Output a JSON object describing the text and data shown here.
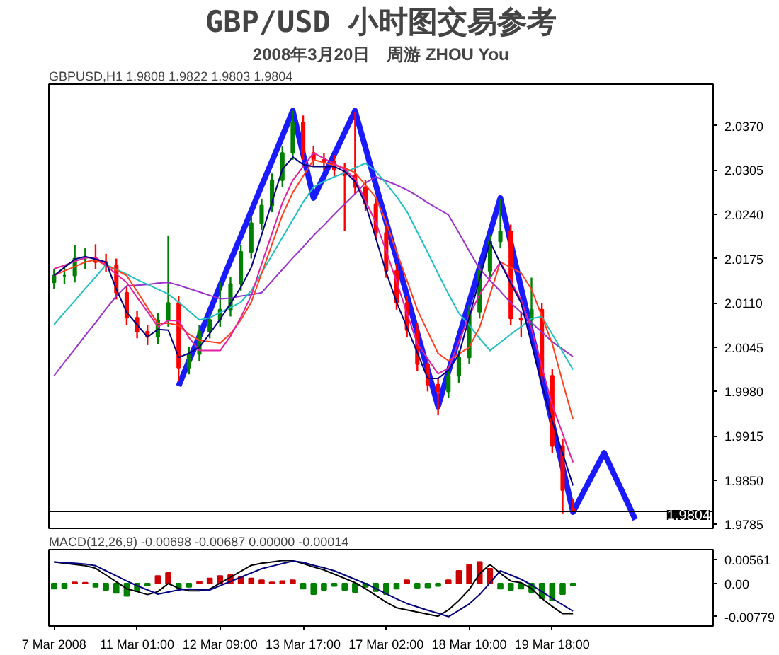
{
  "chart_data": [
    {
      "type": "candlestick",
      "title": "GBP/USD 小时图交易参考",
      "subtitle": "2008年3月20日　周游 ZHOU You",
      "annotations": [
        "GBPUSD,H1  1.9808 1.9822 1.9803 1.9804"
      ],
      "categories": [
        null,
        null,
        null,
        null,
        null,
        null,
        null,
        null,
        null,
        null,
        null,
        null,
        null,
        null,
        null,
        null,
        null,
        null,
        null,
        null,
        null,
        null,
        null,
        null,
        null,
        null,
        null,
        null,
        null,
        null,
        null,
        null,
        null,
        null,
        null,
        null,
        null,
        null,
        null,
        null,
        null,
        null,
        null,
        null,
        null,
        null,
        null,
        null,
        null,
        null,
        null,
        null,
        null,
        null,
        null,
        null,
        null,
        null,
        null,
        null,
        null,
        null,
        null,
        null
      ],
      "ohlc": [
        [
          2.014,
          2.016,
          2.013,
          2.015
        ],
        [
          2.015,
          2.0165,
          2.0138,
          2.015
        ],
        [
          2.015,
          2.0195,
          2.014,
          2.0175
        ],
        [
          2.0175,
          2.019,
          2.016,
          2.0175
        ],
        [
          2.0175,
          2.0196,
          2.016,
          2.017
        ],
        [
          2.017,
          2.0182,
          2.0155,
          2.0165
        ],
        [
          2.0165,
          2.0175,
          2.0115,
          2.0125
        ],
        [
          2.0125,
          2.0135,
          2.0078,
          2.0088
        ],
        [
          2.0088,
          2.0098,
          2.0058,
          2.0068
        ],
        [
          2.0068,
          2.0078,
          2.0048,
          2.006
        ],
        [
          2.006,
          2.0095,
          2.005,
          2.0085
        ],
        [
          2.0085,
          2.0209,
          2.0075,
          2.011
        ],
        [
          2.011,
          2.012,
          1.9995,
          2.0015
        ],
        [
          2.0015,
          2.0045,
          2.0005,
          2.0035
        ],
        [
          2.0035,
          2.0078,
          2.0025,
          2.0068
        ],
        [
          2.0068,
          2.0095,
          2.0058,
          2.0085
        ],
        [
          2.0085,
          2.014,
          2.0075,
          2.01
        ],
        [
          2.01,
          2.0148,
          2.009,
          2.0138
        ],
        [
          2.0138,
          2.0195,
          2.0128,
          2.0185
        ],
        [
          2.0185,
          2.0237,
          2.0175,
          2.0227
        ],
        [
          2.0227,
          2.0263,
          2.0217,
          2.0253
        ],
        [
          2.0253,
          2.03,
          2.0243,
          2.029
        ],
        [
          2.029,
          2.034,
          2.028,
          2.033
        ],
        [
          2.033,
          2.0392,
          2.032,
          2.0375
        ],
        [
          2.0375,
          2.0385,
          2.032,
          2.033
        ],
        [
          2.033,
          2.034,
          2.031,
          2.032
        ],
        [
          2.032,
          2.033,
          2.0305,
          2.0317
        ],
        [
          2.0317,
          2.0327,
          2.0295,
          2.0305
        ],
        [
          2.0305,
          2.0315,
          2.0215,
          2.0297
        ],
        [
          2.0297,
          2.039,
          2.027,
          2.028
        ],
        [
          2.028,
          2.029,
          2.0245,
          2.0255
        ],
        [
          2.0255,
          2.0265,
          2.0203,
          2.0213
        ],
        [
          2.0213,
          2.0223,
          2.0147,
          2.0157
        ],
        [
          2.0157,
          2.0167,
          2.01,
          2.011
        ],
        [
          2.011,
          2.012,
          2.006,
          2.007
        ],
        [
          2.007,
          2.008,
          2.001,
          2.002
        ],
        [
          2.002,
          2.003,
          1.998,
          1.999
        ],
        [
          1.999,
          2.0,
          1.9945,
          1.998
        ],
        [
          1.998,
          2.0013,
          1.997,
          2.0003
        ],
        [
          2.0003,
          2.004,
          1.9993,
          2.003
        ],
        [
          2.003,
          2.0107,
          2.002,
          2.0097
        ],
        [
          2.0097,
          2.0167,
          2.0087,
          2.0157
        ],
        [
          2.0157,
          2.021,
          2.0147,
          2.02
        ],
        [
          2.02,
          2.0262,
          2.019,
          2.0215
        ],
        [
          2.0215,
          2.0225,
          2.0077,
          2.0087
        ],
        [
          2.0087,
          2.0097,
          2.006,
          2.0085
        ],
        [
          2.0085,
          2.0147,
          2.0075,
          2.01
        ],
        [
          2.01,
          2.011,
          1.9993,
          2.0003
        ],
        [
          2.0003,
          2.0013,
          1.989,
          1.99
        ],
        [
          1.99,
          1.991,
          1.9801,
          1.9835
        ],
        [
          1.9808,
          1.9822,
          1.9803,
          1.9804
        ],
        null,
        null,
        null,
        null,
        null,
        null,
        null,
        null,
        null,
        null,
        null,
        null,
        null
      ],
      "series": [
        {
          "type": "line",
          "color": "#9932cc",
          "values": [
            2.0003,
            2.0023,
            2.0042,
            2.0062,
            2.0081,
            2.0101,
            2.012,
            2.0135,
            2.0136,
            2.0137,
            2.0139,
            2.014,
            2.0136,
            2.0131,
            2.0126,
            2.0121,
            2.0116,
            2.0117,
            2.012,
            2.0122,
            2.0125,
            2.0142,
            2.0159,
            2.0176,
            2.0192,
            2.0209,
            2.0224,
            2.024,
            2.0255,
            2.027,
            2.0286,
            2.0295,
            2.0289,
            2.0283,
            2.0276,
            2.0267,
            2.0257,
            2.0248,
            2.0239,
            2.0213,
            2.0186,
            2.016,
            2.0143,
            2.0127,
            2.011,
            2.0096,
            2.0081,
            2.0067,
            2.0053,
            2.0042,
            2.0031,
            null,
            null,
            null,
            null,
            null,
            null,
            null,
            null,
            null,
            null,
            null,
            null,
            null
          ]
        },
        {
          "type": "line",
          "color": "#20c0c0",
          "values": [
            2.0078,
            2.0096,
            2.0113,
            2.0131,
            2.0148,
            2.0166,
            2.0159,
            2.0152,
            2.0144,
            2.0137,
            2.013,
            2.0123,
            2.0111,
            2.0098,
            2.0085,
            2.0088,
            2.0096,
            2.0103,
            2.0111,
            2.0128,
            2.0154,
            2.018,
            2.0206,
            2.0232,
            2.0258,
            2.028,
            2.0288,
            2.0295,
            2.0301,
            2.0308,
            2.0315,
            2.0303,
            2.0285,
            2.0266,
            2.0244,
            2.0214,
            2.0184,
            2.0153,
            2.0123,
            2.0095,
            2.0077,
            2.0058,
            2.004,
            2.0052,
            2.0064,
            2.0075,
            2.0087,
            2.009,
            2.0064,
            2.0038,
            2.0012,
            null,
            null,
            null,
            null,
            null,
            null,
            null,
            null,
            null,
            null,
            null,
            null,
            null
          ]
        },
        {
          "type": "line",
          "color": "#ff4020",
          "values": [
            2.015,
            2.0157,
            2.0163,
            2.017,
            2.0173,
            2.0165,
            2.0158,
            2.015,
            2.0127,
            2.0103,
            2.008,
            2.008,
            2.0077,
            2.0064,
            2.0055,
            2.0053,
            2.0051,
            2.0065,
            2.0085,
            2.0111,
            2.0153,
            2.0196,
            2.0239,
            2.0272,
            2.0296,
            2.032,
            2.0316,
            2.0312,
            2.0308,
            2.0301,
            2.0283,
            2.0265,
            2.0228,
            2.0185,
            2.0143,
            2.01,
            2.0068,
            2.0036,
            2.0025,
            2.0035,
            2.0045,
            2.0074,
            2.0122,
            2.017,
            2.0162,
            2.0154,
            2.013,
            2.009,
            2.005,
            1.9994,
            1.9939,
            null,
            null,
            null,
            null,
            null,
            null,
            null,
            null,
            null,
            null,
            null,
            null,
            null
          ]
        },
        {
          "type": "line",
          "color": "#e020a0",
          "values": [
            2.016,
            2.0165,
            2.0171,
            2.0176,
            2.0177,
            2.0165,
            2.0152,
            2.014,
            2.0118,
            2.0097,
            2.0075,
            2.0084,
            2.0084,
            2.0059,
            2.004,
            2.004,
            2.004,
            2.0061,
            2.0089,
            2.0121,
            2.0167,
            2.0212,
            2.0257,
            2.029,
            2.031,
            2.033,
            2.0322,
            2.0314,
            2.0306,
            2.0292,
            2.026,
            2.0228,
            2.0186,
            2.0141,
            2.0095,
            2.005,
            2.0028,
            2.0006,
            2.0014,
            2.0053,
            2.0091,
            2.0122,
            2.0146,
            2.017,
            2.0142,
            2.0114,
            2.0072,
            2.0016,
            1.996,
            1.9918,
            1.9876,
            null,
            null,
            null,
            null,
            null,
            null,
            null,
            null,
            null,
            null,
            null,
            null,
            null
          ]
        },
        {
          "type": "line",
          "color": "#000080",
          "values": [
            2.015,
            2.0162,
            2.0174,
            2.0178,
            2.0174,
            2.017,
            2.013,
            2.0096,
            2.0078,
            2.006,
            2.0071,
            2.007,
            2.003,
            2.0036,
            2.0045,
            2.0065,
            2.0086,
            2.0109,
            2.0133,
            2.0162,
            2.021,
            2.0258,
            2.0306,
            2.0324,
            2.0313,
            2.031,
            2.031,
            2.031,
            2.0303,
            2.0288,
            2.0255,
            2.0205,
            2.0155,
            2.0111,
            2.0074,
            2.0037,
            1.9999,
            1.9999,
            2.0011,
            2.0034,
            2.0089,
            2.0145,
            2.02,
            2.0168,
            2.0139,
            2.011,
            2.005,
            1.999,
            1.9936,
            1.9889,
            1.9842,
            null,
            null,
            null,
            null,
            null,
            null,
            null,
            null,
            null,
            null,
            null,
            null,
            null
          ]
        },
        {
          "type": "line",
          "color": "#1a1aff",
          "values": [
            null,
            null,
            null,
            null,
            null,
            null,
            null,
            null,
            null,
            null,
            null,
            null,
            1.9988,
            2.0025,
            2.0061,
            2.0098,
            2.0135,
            2.0172,
            2.0208,
            2.0245,
            2.0282,
            2.0318,
            2.0355,
            2.0392,
            2.0328,
            2.0264,
            2.0296,
            2.0328,
            2.036,
            2.0392,
            2.0338,
            2.0283,
            2.0229,
            2.0175,
            2.0121,
            2.0066,
            2.0012,
            1.9958,
            2.0009,
            2.006,
            2.0111,
            2.0162,
            2.0213,
            2.0264,
            2.0198,
            2.0132,
            2.0066,
            2.0,
            1.9934,
            1.9869,
            1.9803,
            1.9832,
            1.9861,
            1.989,
            1.9857,
            1.9825,
            1.9792,
            null,
            null,
            null,
            null,
            null,
            null,
            null
          ]
        }
      ],
      "ylim": [
        1.9779,
        2.0431
      ],
      "yticks": [
        {
          "value": 2.037,
          "label": "2.0370"
        },
        {
          "value": 2.0305,
          "label": "2.0305"
        },
        {
          "value": 2.024,
          "label": "2.0240"
        },
        {
          "value": 2.0175,
          "label": "2.0175"
        },
        {
          "value": 2.011,
          "label": "2.0110"
        },
        {
          "value": 2.0045,
          "label": "2.0045"
        },
        {
          "value": 1.998,
          "label": "1.9980"
        },
        {
          "value": 1.9915,
          "label": "1.9915"
        },
        {
          "value": 1.985,
          "label": "1.9850"
        },
        {
          "value": 1.9785,
          "label": "1.9785"
        }
      ],
      "ref_lines": [
        {
          "axis": "y",
          "value": 1.9804,
          "label": "1.9804"
        }
      ],
      "tick_labels": "y",
      "grid": false
    },
    {
      "type": "bar",
      "annotations": [
        "MACD(12,26,9) -0.00698 -0.00687 0.00000 -0.00014"
      ],
      "categories": [
        "7 Mar 2008",
        null,
        null,
        null,
        null,
        null,
        null,
        null,
        "11 Mar 01:00",
        null,
        null,
        null,
        null,
        null,
        null,
        null,
        "12 Mar 09:00",
        null,
        null,
        null,
        null,
        null,
        null,
        null,
        "13 Mar 17:00",
        null,
        null,
        null,
        null,
        null,
        null,
        null,
        "17 Mar 02:00",
        null,
        null,
        null,
        null,
        null,
        null,
        null,
        "18 Mar 10:00",
        null,
        null,
        null,
        null,
        null,
        null,
        null,
        "19 Mar 18:00",
        null,
        null,
        null,
        null,
        null,
        null,
        null,
        null,
        null,
        null,
        null,
        null,
        null,
        null,
        null
      ],
      "series": [
        {
          "type": "bar",
          "values": [
            -0.0012,
            -0.001,
            0.0003,
            0.0002,
            -0.0008,
            -0.0015,
            -0.0022,
            -0.0029,
            -0.0018,
            -0.0005,
            0.0018,
            0.0025,
            -0.001,
            -0.0008,
            0.0005,
            0.0012,
            0.0018,
            0.002,
            0.0016,
            0.0012,
            0.0008,
            0.0003,
            0.0006,
            0.0008,
            -0.0012,
            -0.0025,
            -0.0015,
            -0.0006,
            -0.0015,
            -0.002,
            -0.0008,
            -0.0018,
            -0.0025,
            -0.0012,
            0.0008,
            -0.001,
            -0.0009,
            -0.0006,
            0.0008,
            0.003,
            0.0045,
            0.0051,
            0.0035,
            -0.0012,
            -0.0015,
            -0.0012,
            -0.002,
            -0.0035,
            -0.004,
            -0.0025,
            -0.0005,
            null,
            null,
            null,
            null,
            null,
            null,
            null,
            null,
            null,
            null,
            null,
            null,
            null
          ],
          "colors": [
            "#008000",
            "#008000",
            "#cc0000",
            "#cc0000",
            "#008000",
            "#008000",
            "#008000",
            "#008000",
            "#008000",
            "#008000",
            "#cc0000",
            "#cc0000",
            "#008000",
            "#008000",
            "#cc0000",
            "#cc0000",
            "#cc0000",
            "#cc0000",
            "#cc0000",
            "#cc0000",
            "#cc0000",
            "#cc0000",
            "#cc0000",
            "#cc0000",
            "#008000",
            "#008000",
            "#008000",
            "#008000",
            "#008000",
            "#008000",
            "#008000",
            "#008000",
            "#008000",
            "#008000",
            "#cc0000",
            "#008000",
            "#008000",
            "#008000",
            "#cc0000",
            "#cc0000",
            "#cc0000",
            "#cc0000",
            "#cc0000",
            "#008000",
            "#008000",
            "#008000",
            "#008000",
            "#008000",
            "#008000",
            "#008000",
            "#008000",
            null,
            null,
            null,
            null,
            null,
            null,
            null,
            null,
            null,
            null,
            null,
            null,
            null
          ]
        },
        {
          "type": "line",
          "color": "#000000",
          "values": [
            0.0051,
            0.0048,
            0.0045,
            0.0042,
            0.0036,
            0.002,
            0.0004,
            -0.0012,
            -0.0019,
            -0.0026,
            -0.0019,
            0.0,
            -0.0011,
            -0.0017,
            -0.0017,
            -0.0013,
            0.0001,
            0.0015,
            0.0029,
            0.0043,
            0.0048,
            0.0051,
            0.0054,
            0.0054,
            0.0047,
            0.0039,
            0.0032,
            0.0022,
            0.0012,
            0.0002,
            -0.0012,
            -0.0028,
            -0.0044,
            -0.0057,
            -0.0062,
            -0.0067,
            -0.0072,
            -0.0077,
            -0.0062,
            -0.004,
            -0.0014,
            0.0023,
            0.0045,
            0.0024,
            0.0006,
            0.0002,
            -0.0012,
            -0.0035,
            -0.0054,
            -0.0071,
            -0.0071,
            null,
            null,
            null,
            null,
            null,
            null,
            null,
            null,
            null,
            null,
            null,
            null,
            null
          ]
        },
        {
          "type": "line",
          "color": "#000080",
          "values": [
            0.0051,
            0.0049,
            0.0048,
            0.0046,
            0.0042,
            0.003,
            0.0018,
            0.0006,
            -0.0005,
            -0.0015,
            -0.0025,
            -0.002,
            -0.0015,
            -0.0013,
            -0.0014,
            -0.0015,
            -0.0005,
            0.0005,
            0.0015,
            0.0025,
            0.0035,
            0.0041,
            0.0047,
            0.0053,
            0.005,
            0.0043,
            0.0037,
            0.003,
            0.002,
            0.001,
            0.0,
            -0.0012,
            -0.0024,
            -0.0036,
            -0.0047,
            -0.0055,
            -0.0063,
            -0.007,
            -0.0078,
            -0.0063,
            -0.0048,
            -0.0026,
            0.0002,
            0.003,
            0.002,
            0.001,
            -0.0003,
            -0.0019,
            -0.0035,
            -0.005,
            -0.0065,
            null,
            null,
            null,
            null,
            null,
            null,
            null,
            null,
            null,
            null,
            null,
            null,
            null
          ]
        }
      ],
      "ylim": [
        -0.01,
        0.008
      ],
      "yticks": [
        {
          "value": 0.00561,
          "label": "0.00561"
        },
        {
          "value": 0,
          "label": "0.00"
        },
        {
          "value": -0.00779,
          "label": "-0.00779"
        }
      ],
      "grid": false
    }
  ]
}
